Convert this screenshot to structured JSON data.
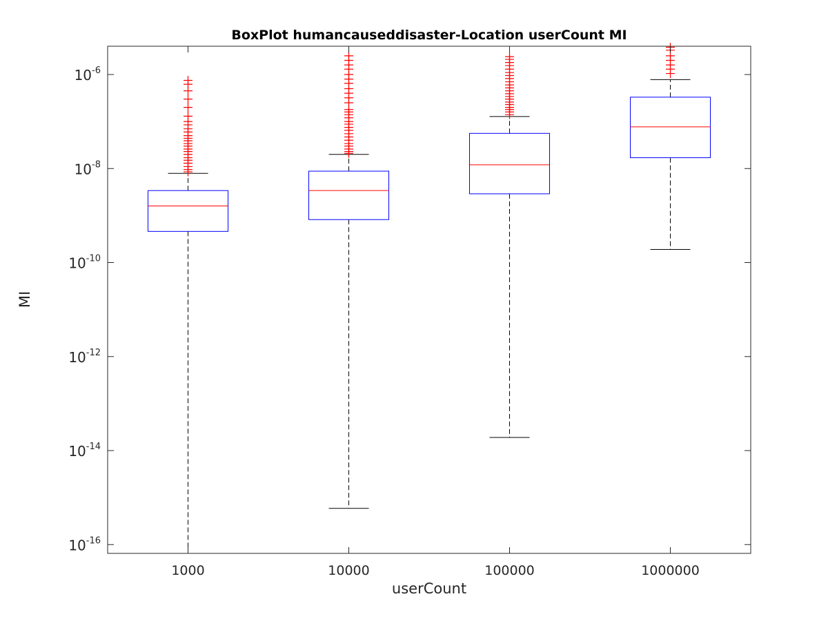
{
  "chart_data": {
    "type": "box",
    "title": "BoxPlot humancauseddisaster-Location userCount MI",
    "xlabel": "userCount",
    "ylabel": "MI",
    "yscale": "log",
    "ylim": [
      6.5e-17,
      4e-06
    ],
    "categories": [
      "1000",
      "10000",
      "100000",
      "1000000"
    ],
    "yticks": [
      {
        "base": "10",
        "exp": "-16",
        "value": 1e-16
      },
      {
        "base": "10",
        "exp": "-14",
        "value": 1e-14
      },
      {
        "base": "10",
        "exp": "-12",
        "value": 1e-12
      },
      {
        "base": "10",
        "exp": "-10",
        "value": 1e-10
      },
      {
        "base": "10",
        "exp": "-8",
        "value": 1e-08
      },
      {
        "base": "10",
        "exp": "-6",
        "value": 1e-06
      }
    ],
    "boxes": [
      {
        "category": "1000",
        "whisker_low": 6.5e-17,
        "q1": 4.6e-10,
        "median": 1.6e-09,
        "q3": 3.4e-09,
        "whisker_high": 7.9e-09,
        "outliers": [
          8.5e-09,
          9.5e-09,
          1.1e-08,
          1.3e-08,
          1.5e-08,
          1.7e-08,
          2e-08,
          2.3e-08,
          2.6e-08,
          3e-08,
          3.4e-08,
          3.9e-08,
          4.4e-08,
          5e-08,
          6e-08,
          7e-08,
          8.5e-08,
          1e-07,
          1.3e-07,
          2e-07,
          3e-07,
          4.5e-07,
          6.2e-07,
          7.5e-07
        ]
      },
      {
        "category": "10000",
        "whisker_low": 5.9e-16,
        "q1": 8.2e-10,
        "median": 3.4e-09,
        "q3": 8.8e-09,
        "whisker_high": 2e-08,
        "outliers": [
          2.1e-08,
          2.3e-08,
          2.6e-08,
          3e-08,
          3.4e-08,
          4e-08,
          4.7e-08,
          5.5e-08,
          6.5e-08,
          7.5e-08,
          8.8e-08,
          1e-07,
          1.2e-07,
          1.4e-07,
          1.6e-07,
          1.8e-07,
          2.5e-07,
          3.2e-07,
          4e-07,
          5e-07,
          6.5e-07,
          8e-07,
          1e-06,
          1.3e-06,
          1.6e-06,
          2e-06,
          2.5e-06
        ]
      },
      {
        "category": "100000",
        "whisker_low": 1.9e-14,
        "q1": 2.9e-09,
        "median": 1.2e-08,
        "q3": 5.6e-08,
        "whisker_high": 1.28e-07,
        "outliers": [
          1.4e-07,
          1.6e-07,
          1.8e-07,
          2e-07,
          2.3e-07,
          2.6e-07,
          3e-07,
          3.4e-07,
          3.9e-07,
          4.5e-07,
          5.2e-07,
          6e-07,
          7e-07,
          8.2e-07,
          9.5e-07,
          1.1e-06,
          1.3e-06,
          1.55e-06,
          1.8e-06,
          2.1e-06,
          2.4e-06
        ]
      },
      {
        "category": "1000000",
        "whisker_low": 1.9e-10,
        "q1": 1.7e-08,
        "median": 7.7e-08,
        "q3": 3.3e-07,
        "whisker_high": 7.8e-07,
        "outliers": [
          1.05e-06,
          1.3e-06,
          1.6e-06,
          2e-06,
          2.5e-06,
          3.3e-06,
          3.8e-06
        ]
      }
    ],
    "colors": {
      "box": "#0000ff",
      "median": "#ff0000",
      "whisker": "#000000",
      "outlier": "#ff0000",
      "axis": "#262626"
    }
  }
}
